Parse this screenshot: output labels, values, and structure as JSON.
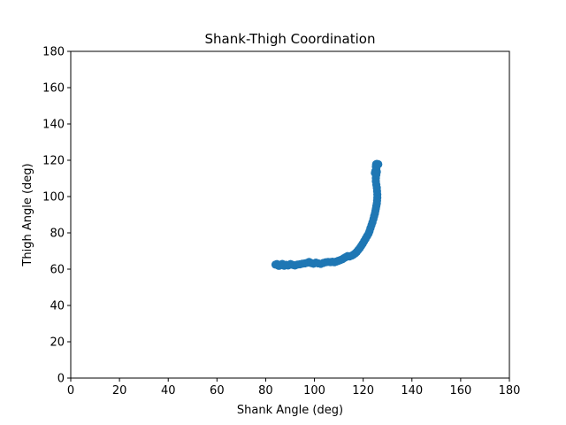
{
  "chart_data": {
    "type": "scatter",
    "title": "Shank-Thigh Coordination",
    "xlabel": "Shank Angle (deg)",
    "ylabel": "Thigh Angle (deg)",
    "xlim": [
      0,
      180
    ],
    "ylim": [
      0,
      180
    ],
    "xticks": [
      "0",
      "20",
      "40",
      "60",
      "80",
      "100",
      "120",
      "140",
      "160",
      "180"
    ],
    "yticks": [
      "0",
      "20",
      "40",
      "60",
      "80",
      "100",
      "120",
      "140",
      "160",
      "180"
    ],
    "grid": false,
    "legend": false,
    "marker_color": "#1f77b4",
    "series": [
      {
        "x": [
          84.0,
          84.6,
          85.4,
          86.0,
          86.8,
          87.6,
          88.4,
          89.2,
          90.2,
          91.2,
          92.0,
          93.0,
          94.0,
          95.0,
          96.0,
          97.0,
          97.8,
          98.6,
          99.6,
          100.6,
          101.6,
          102.6,
          103.6,
          104.6,
          105.6,
          106.6,
          107.4,
          108.2,
          109.0,
          109.8,
          110.6,
          111.4,
          112.0,
          112.8,
          113.6,
          114.4,
          115.2,
          116.0,
          116.8,
          117.4,
          118.0,
          118.6,
          119.2,
          119.8,
          120.4,
          121.0,
          121.6,
          122.2,
          122.6,
          123.0,
          123.4,
          123.8,
          124.2,
          124.5,
          124.8,
          125.0,
          125.2,
          125.4,
          125.6,
          125.7,
          125.8,
          125.8,
          125.7,
          125.6,
          125.4,
          125.2,
          125.2,
          125.4,
          125.6,
          125.4,
          125.2,
          125.3,
          125.6,
          125.0,
          124.8,
          125.4,
          126.0,
          126.2
        ],
        "y": [
          62.5,
          62.8,
          61.8,
          62.2,
          62.9,
          61.9,
          62.4,
          62.0,
          62.8,
          62.3,
          62.0,
          62.5,
          62.7,
          63.0,
          63.2,
          63.5,
          64.0,
          63.4,
          63.0,
          63.6,
          63.2,
          62.9,
          63.4,
          63.8,
          64.0,
          63.9,
          64.1,
          63.8,
          64.2,
          64.6,
          65.0,
          65.4,
          66.0,
          66.6,
          67.2,
          67.0,
          67.4,
          68.0,
          68.8,
          69.6,
          70.6,
          71.6,
          72.8,
          74.0,
          75.4,
          76.8,
          78.2,
          79.6,
          81.0,
          82.6,
          84.2,
          85.8,
          87.6,
          89.2,
          90.6,
          92.0,
          93.4,
          94.8,
          96.2,
          97.8,
          99.4,
          101.2,
          103.0,
          104.8,
          106.6,
          108.4,
          110.2,
          112.0,
          113.6,
          115.2,
          116.6,
          117.8,
          118.0,
          114.0,
          113.0,
          116.4,
          117.6,
          117.8
        ]
      }
    ]
  }
}
